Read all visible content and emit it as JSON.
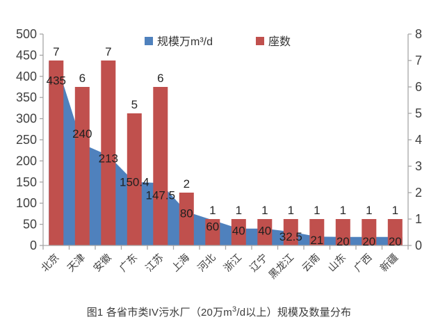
{
  "caption": {
    "pre": "图1 各省市类IV污水厂（20万m",
    "sup": "3",
    "post": "/d以上）规模及数量分布"
  },
  "colors": {
    "area": "#4F81BD",
    "bar": "#C0504D",
    "axis_line": "#A6A6A6",
    "tick_text": "#404040",
    "data_label_text": "#1F1F1F",
    "legend_text": "#333333",
    "background": "#FFFFFF"
  },
  "chart_data": {
    "type": "combo (area + bar)",
    "categories": [
      "北京",
      "天津",
      "安徽",
      "广东",
      "江苏",
      "上海",
      "河北",
      "浙江",
      "辽宁",
      "黑龙江",
      "云南",
      "山东",
      "广西",
      "新疆"
    ],
    "series": [
      {
        "name": "规模万m³/d",
        "type": "area",
        "axis": "left",
        "color": "#4F81BD",
        "values": [
          435,
          240,
          213,
          150.4,
          147.5,
          80,
          60,
          40,
          40,
          32.5,
          21,
          20,
          20,
          20
        ]
      },
      {
        "name": "座数",
        "type": "bar",
        "axis": "right",
        "color": "#C0504D",
        "values": [
          7,
          6,
          7,
          5,
          6,
          2,
          1,
          1,
          1,
          1,
          1,
          1,
          1,
          1
        ]
      }
    ],
    "left_axis": {
      "min": 0,
      "max": 500,
      "step": 50,
      "ticks": [
        0,
        50,
        100,
        150,
        200,
        250,
        300,
        350,
        400,
        450,
        500
      ]
    },
    "right_axis": {
      "min": 0,
      "max": 8,
      "step": 1,
      "ticks": [
        0,
        1,
        2,
        3,
        4,
        5,
        6,
        7,
        8
      ]
    },
    "title": "图1 各省市类IV污水厂（20万m³/d以上）规模及数量分布",
    "xlabel": "",
    "ylabel_left": "规模万m³/d",
    "ylabel_right": "座数",
    "legend_position": "top",
    "grid": false,
    "data_labels": true,
    "x_tick_label_rotation_deg": 45
  }
}
